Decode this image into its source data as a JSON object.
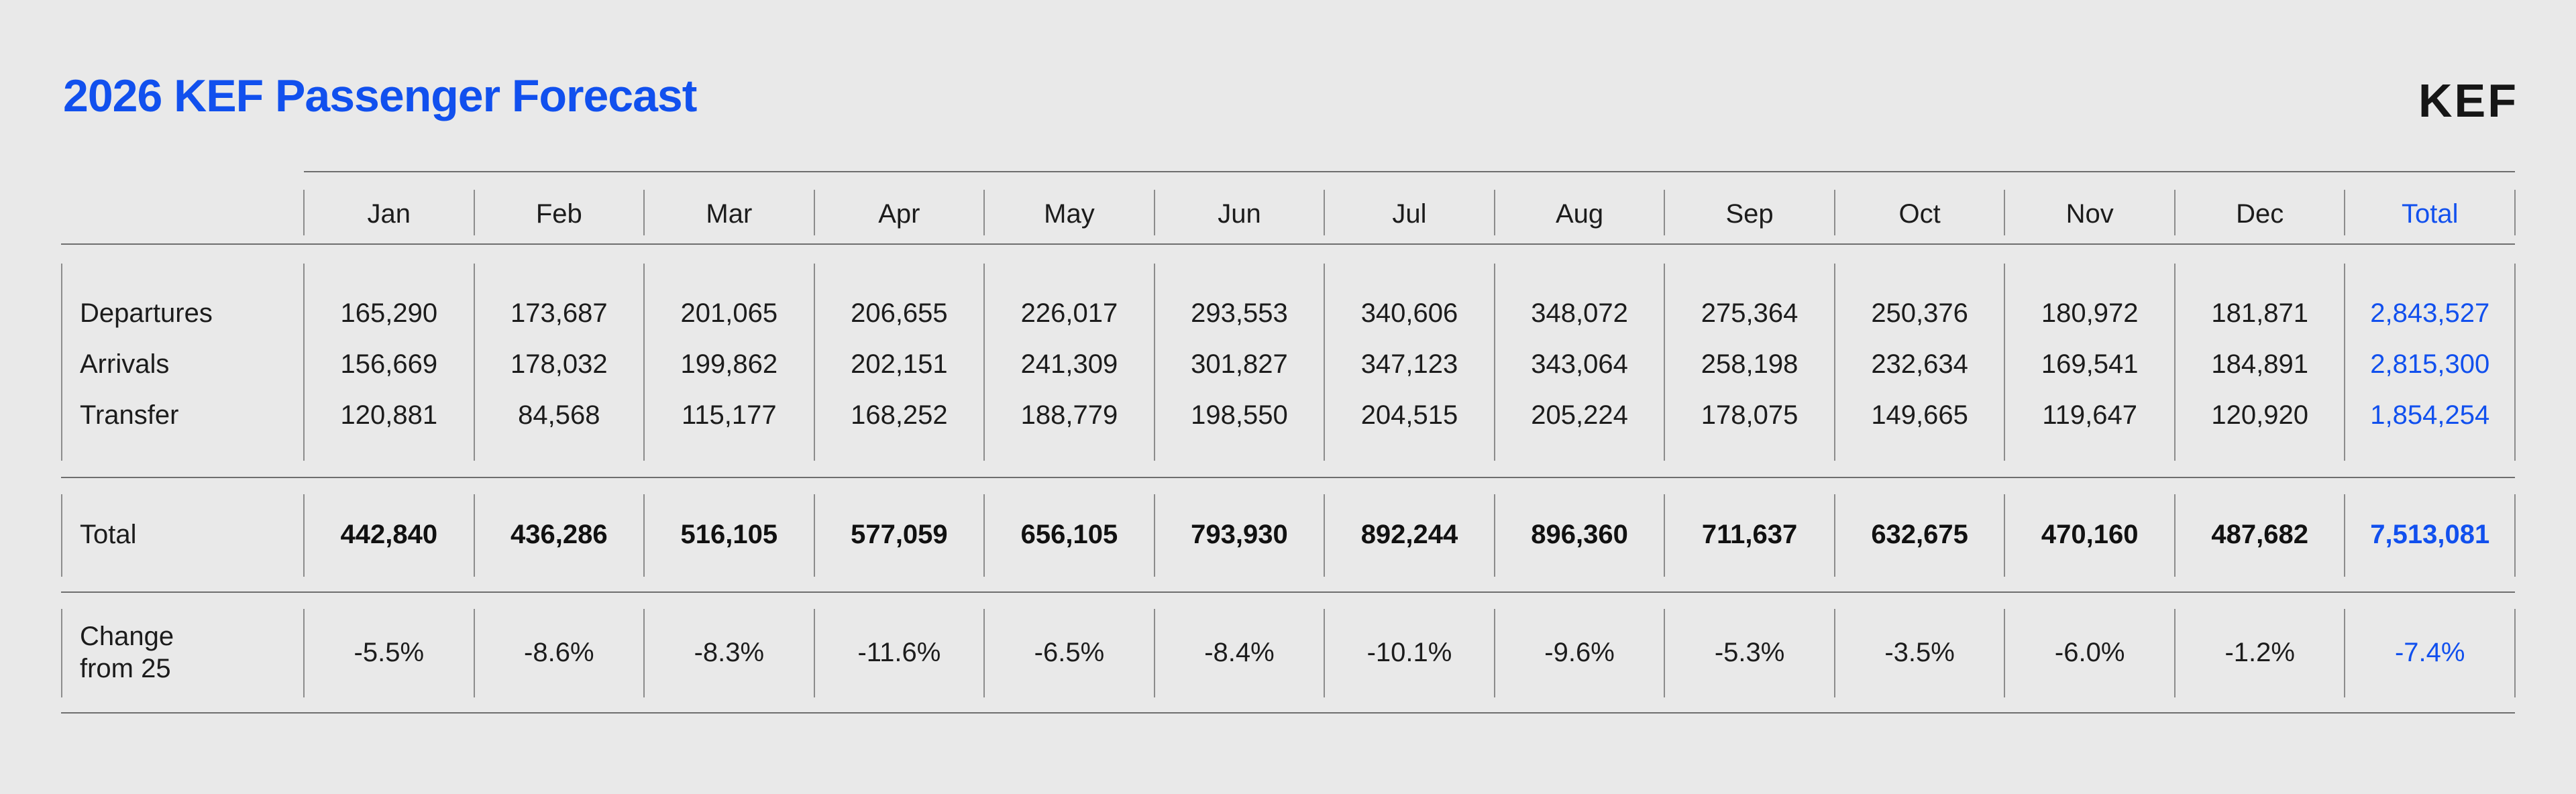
{
  "header": {
    "title": "2026 KEF Passenger Forecast",
    "logo": "KEF"
  },
  "table": {
    "columns": [
      "Jan",
      "Feb",
      "Mar",
      "Apr",
      "May",
      "Jun",
      "Jul",
      "Aug",
      "Sep",
      "Oct",
      "Nov",
      "Dec",
      "Total"
    ],
    "rows": [
      {
        "label": "Departures",
        "values": [
          "165,290",
          "173,687",
          "201,065",
          "206,655",
          "226,017",
          "293,553",
          "340,606",
          "348,072",
          "275,364",
          "250,376",
          "180,972",
          "181,871"
        ],
        "total": "2,843,527"
      },
      {
        "label": "Arrivals",
        "values": [
          "156,669",
          "178,032",
          "199,862",
          "202,151",
          "241,309",
          "301,827",
          "347,123",
          "343,064",
          "258,198",
          "232,634",
          "169,541",
          "184,891"
        ],
        "total": "2,815,300"
      },
      {
        "label": "Transfer",
        "values": [
          "120,881",
          "84,568",
          "115,177",
          "168,252",
          "188,779",
          "198,550",
          "204,515",
          "205,224",
          "178,075",
          "149,665",
          "119,647",
          "120,920"
        ],
        "total": "1,854,254"
      }
    ],
    "total_row": {
      "label": "Total",
      "values": [
        "442,840",
        "436,286",
        "516,105",
        "577,059",
        "656,105",
        "793,930",
        "892,244",
        "896,360",
        "711,637",
        "632,675",
        "470,160",
        "487,682"
      ],
      "total": "7,513,081"
    },
    "change_row": {
      "label": "Change\nfrom 25",
      "values": [
        "-5.5%",
        "-8.6%",
        "-8.3%",
        "-11.6%",
        "-6.5%",
        "-8.4%",
        "-10.1%",
        "-9.6%",
        "-5.3%",
        "-3.5%",
        "-6.0%",
        "-1.2%"
      ],
      "total": "-7.4%"
    }
  },
  "colors": {
    "background": "#e9e9e9",
    "accent_blue": "#1150ee",
    "text": "#1c1c1c",
    "line_horizontal": "#6e6e6e",
    "line_vertical": "#8c8c8c"
  },
  "chart_data": {
    "type": "table",
    "title": "2026 KEF Passenger Forecast",
    "columns": [
      "Jan",
      "Feb",
      "Mar",
      "Apr",
      "May",
      "Jun",
      "Jul",
      "Aug",
      "Sep",
      "Oct",
      "Nov",
      "Dec",
      "Total"
    ],
    "rows": [
      {
        "name": "Departures",
        "monthly": [
          165290,
          173687,
          201065,
          206655,
          226017,
          293553,
          340606,
          348072,
          275364,
          250376,
          180972,
          181871
        ],
        "total": 2843527
      },
      {
        "name": "Arrivals",
        "monthly": [
          156669,
          178032,
          199862,
          202151,
          241309,
          301827,
          347123,
          343064,
          258198,
          232634,
          169541,
          184891
        ],
        "total": 2815300
      },
      {
        "name": "Transfer",
        "monthly": [
          120881,
          84568,
          115177,
          168252,
          188779,
          198550,
          204515,
          205224,
          178075,
          149665,
          119647,
          120920
        ],
        "total": 1854254
      },
      {
        "name": "Total",
        "monthly": [
          442840,
          436286,
          516105,
          577059,
          656105,
          793930,
          892244,
          896360,
          711637,
          632675,
          470160,
          487682
        ],
        "total": 7513081
      },
      {
        "name": "Change from 25",
        "monthly_pct": [
          -5.5,
          -8.6,
          -8.3,
          -11.6,
          -6.5,
          -8.4,
          -10.1,
          -9.6,
          -5.3,
          -3.5,
          -6.0,
          -1.2
        ],
        "total_pct": -7.4
      }
    ]
  }
}
